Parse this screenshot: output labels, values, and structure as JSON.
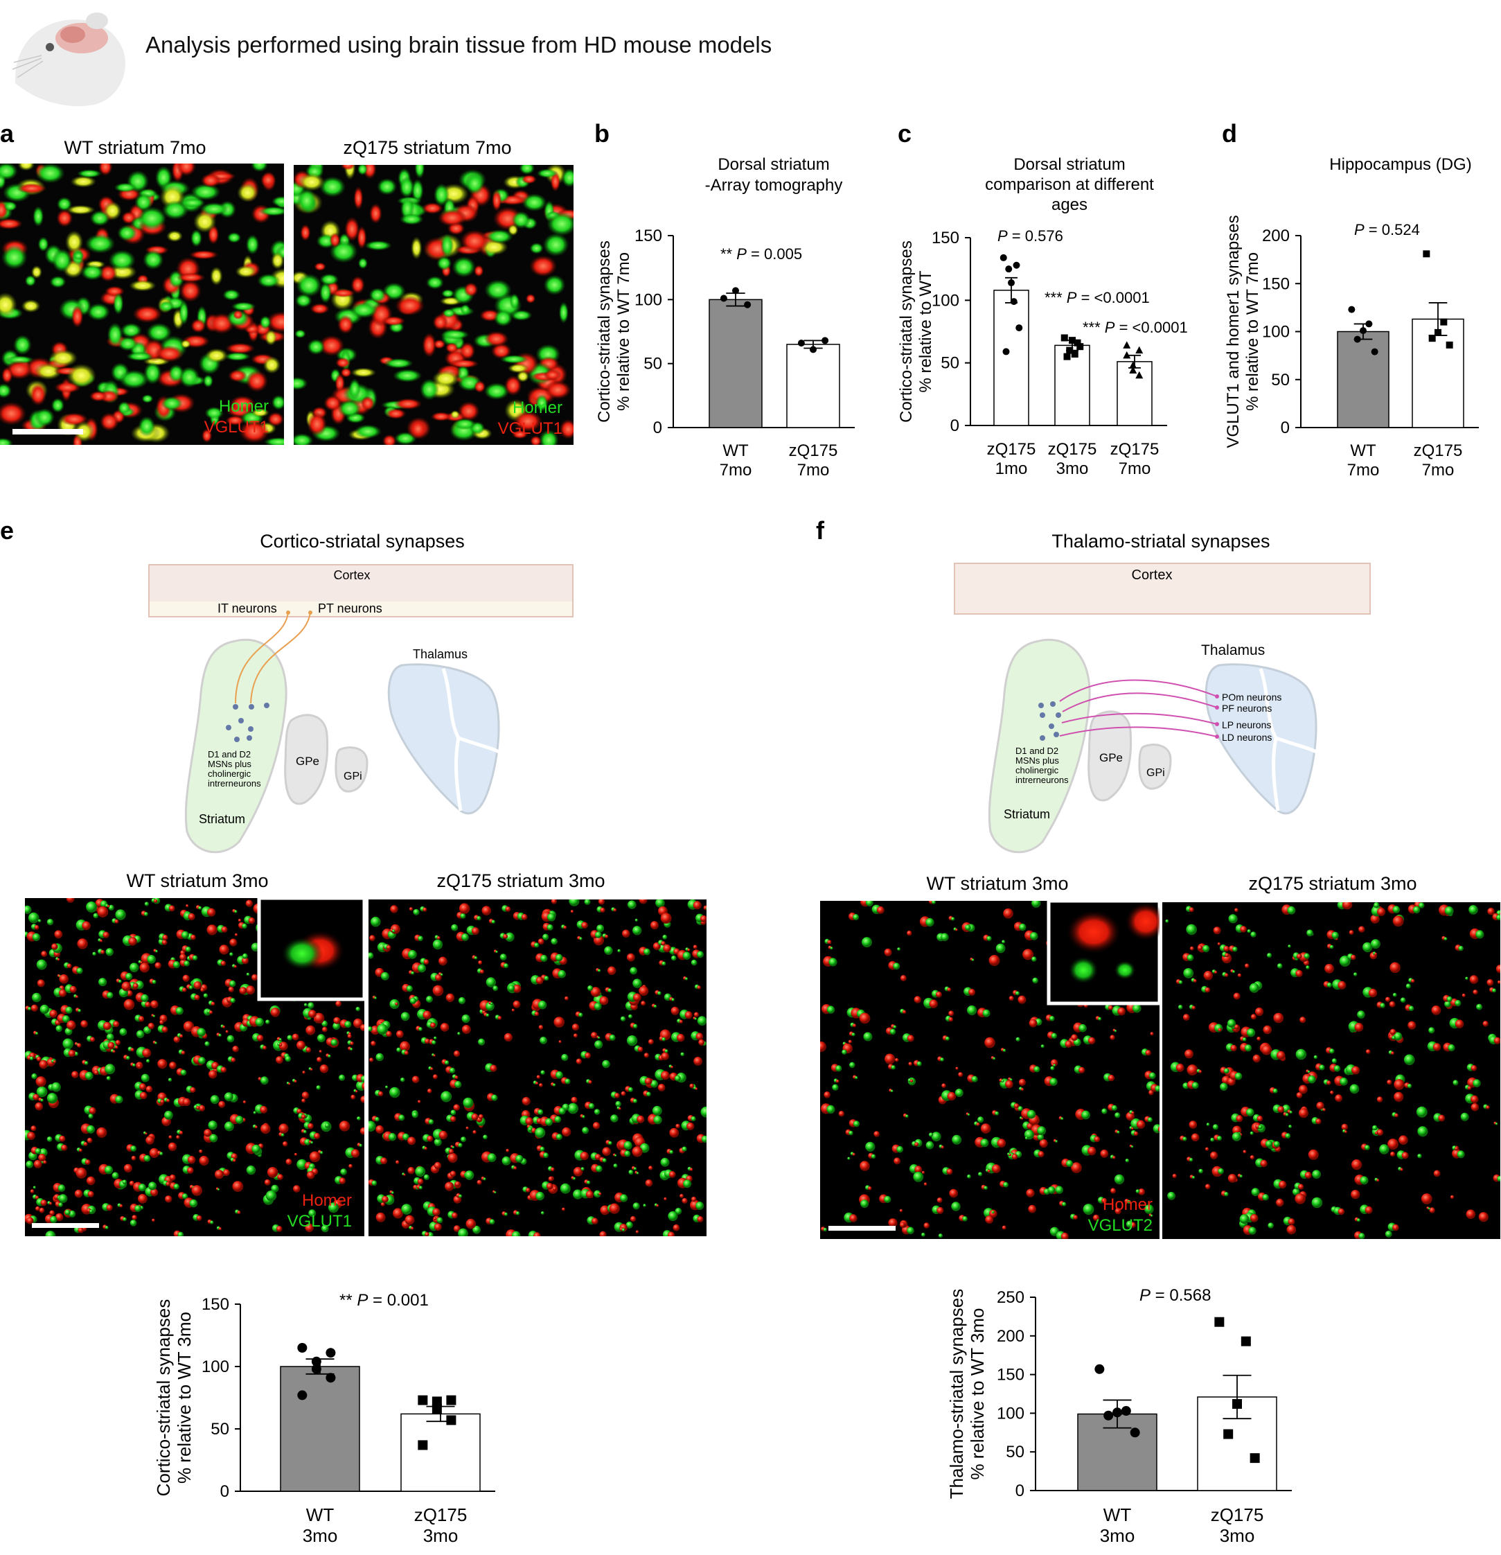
{
  "header": {
    "text": "Analysis performed using brain tissue from HD mouse models"
  },
  "colors": {
    "green": "#22dd22",
    "red": "#ee2211",
    "gray_bar": "#8c8c8c",
    "cortex": "#f5e9e6",
    "cortex_border": "#e2c2b6",
    "striatum": "#e3f5dc",
    "thalamus": "#dce8f5",
    "gp": "#e6e6e6",
    "orange_arrow": "#e8a050",
    "pink_arrow": "#d050b0",
    "dot": "#6478a8"
  },
  "panels": {
    "a": {
      "letter": "a",
      "img1_title": "WT striatum 7mo",
      "img2_title": "zQ175 striatum 7mo",
      "img1_label_top": "Homer",
      "img1_label_bottom": "VGLUT1",
      "img2_label_top": "Homer",
      "img2_label_bottom": "VGLUT1"
    },
    "b": {
      "letter": "b"
    },
    "c": {
      "letter": "c"
    },
    "d": {
      "letter": "d"
    },
    "e": {
      "letter": "e",
      "title": "Cortico-striatal synapses",
      "schematic": {
        "cortex": "Cortex",
        "it": "IT neurons",
        "pt": "PT neurons",
        "thalamus": "Thalamus",
        "gpe": "GPe",
        "gpi": "GPi",
        "msn": [
          "D1 and D2",
          "MSNs plus",
          "cholinergic",
          "intrerneurons"
        ],
        "striatum": "Striatum"
      },
      "img1_title": "WT striatum 3mo",
      "img2_title": "zQ175 striatum 3mo",
      "label_top": "Homer",
      "label_bottom": "VGLUT1"
    },
    "f": {
      "letter": "f",
      "title": "Thalamo-striatal synapses",
      "schematic": {
        "cortex": "Cortex",
        "thalamus": "Thalamus",
        "gpe": "GPe",
        "gpi": "GPi",
        "pom": "POm neurons",
        "pf": "PF neurons",
        "lp": "LP neurons",
        "ld": "LD neurons",
        "msn": [
          "D1 and D2",
          "MSNs plus",
          "cholinergic",
          "intrerneurons"
        ],
        "striatum": "Striatum"
      },
      "img1_title": "WT striatum 3mo",
      "img2_title": "zQ175 striatum 3mo",
      "label_top": "Homer",
      "label_bottom": "VGLUT2"
    }
  },
  "chart_data": [
    {
      "id": "b",
      "type": "bar",
      "title": "Dorsal striatum\n-Array tomography",
      "ylabel": "Cortico-striatal synapses\n% relative to WT 7mo",
      "ylim": [
        0,
        150
      ],
      "yticks": [
        0,
        50,
        100,
        150
      ],
      "categories": [
        "WT\n7mo",
        "zQ175\n7mo"
      ],
      "values": [
        100,
        65
      ],
      "sem": [
        5,
        3
      ],
      "fills": [
        "gray",
        "white"
      ],
      "points": [
        [
          101,
          107,
          96
        ],
        [
          66,
          61,
          68
        ]
      ],
      "markers": [
        "circle",
        "circle"
      ],
      "annotations": [
        {
          "stars": "**",
          "text": "P = 0.005"
        }
      ]
    },
    {
      "id": "c",
      "type": "bar",
      "title": "Dorsal striatum\ncomparison at different\nages",
      "ylabel": "Cortico-striatal synapses\n% relative to WT",
      "ylim": [
        0,
        150
      ],
      "yticks": [
        0,
        50,
        100,
        150
      ],
      "categories": [
        "zQ175\n1mo",
        "zQ175\n3mo",
        "zQ175\n7mo"
      ],
      "values": [
        108,
        64,
        51
      ],
      "sem": [
        10,
        4,
        5
      ],
      "fills": [
        "white",
        "white",
        "white"
      ],
      "points": [
        [
          134,
          128,
          125,
          114,
          99,
          59,
          78
        ],
        [
          70,
          66,
          60,
          68,
          57,
          55,
          63
        ],
        [
          64,
          60,
          48,
          44,
          40,
          56
        ]
      ],
      "markers": [
        "circle",
        "square",
        "triangle"
      ],
      "annotations": [
        {
          "stars": "",
          "text": "P = 0.576"
        },
        {
          "stars": "***",
          "text": "P = <0.0001"
        },
        {
          "stars": "***",
          "text": "P = <0.0001"
        }
      ]
    },
    {
      "id": "d",
      "type": "bar",
      "title": "Hippocampus (DG)",
      "ylabel": "VGLUT1 and homer1 synapses\n% relative to WT 7mo",
      "ylim": [
        0,
        200
      ],
      "yticks": [
        0,
        50,
        100,
        150,
        200
      ],
      "categories": [
        "WT\n7mo",
        "zQ175\n7mo"
      ],
      "values": [
        100,
        113
      ],
      "sem": [
        8,
        17
      ],
      "fills": [
        "gray",
        "white"
      ],
      "points": [
        [
          123,
          108,
          101,
          92,
          79
        ],
        [
          181,
          110,
          99,
          93,
          86
        ]
      ],
      "markers": [
        "circle",
        "square"
      ],
      "annotations": [
        {
          "stars": "",
          "text": "P = 0.524"
        }
      ]
    },
    {
      "id": "e",
      "type": "bar",
      "title": "",
      "ylabel": "Cortico-striatal synapses\n% relative to WT 3mo",
      "ylim": [
        0,
        150
      ],
      "yticks": [
        0,
        50,
        100,
        150
      ],
      "categories": [
        "WT\n3mo",
        "zQ175\n3mo"
      ],
      "values": [
        100,
        62
      ],
      "sem": [
        6,
        6
      ],
      "fills": [
        "gray",
        "white"
      ],
      "points": [
        [
          115,
          111,
          104,
          98,
          91,
          77
        ],
        [
          73,
          73,
          72,
          66,
          57,
          37
        ]
      ],
      "markers": [
        "circle",
        "square"
      ],
      "annotations": [
        {
          "stars": "**",
          "text": "P = 0.001"
        }
      ]
    },
    {
      "id": "f",
      "type": "bar",
      "title": "",
      "ylabel": "Thalamo-striatal synapses\n% relative to WT 3mo",
      "ylim": [
        0,
        250
      ],
      "yticks": [
        0,
        50,
        100,
        150,
        200,
        250
      ],
      "categories": [
        "WT\n3mo",
        "zQ175\n3mo"
      ],
      "values": [
        99,
        121
      ],
      "sem": [
        18,
        28
      ],
      "fills": [
        "gray",
        "white"
      ],
      "points": [
        [
          157,
          103,
          101,
          97,
          75
        ],
        [
          218,
          193,
          112,
          73,
          42
        ]
      ],
      "markers": [
        "circle",
        "square"
      ],
      "annotations": [
        {
          "stars": "",
          "text": "P = 0.568"
        }
      ]
    }
  ]
}
